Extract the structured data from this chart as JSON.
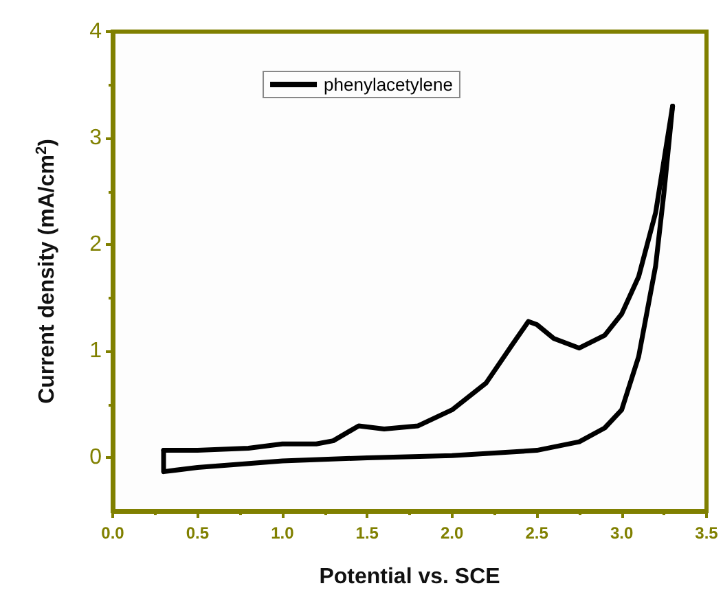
{
  "chart_data": {
    "type": "line",
    "xlabel": "Potential vs. SCE",
    "ylabel": "Current density (mA/cm$^{2}$)",
    "xlim": [
      0,
      3.5
    ],
    "xticks": [
      {
        "value": 0,
        "label": "0.0"
      },
      0.5,
      {
        "value": 1,
        "label": "1.0"
      },
      1.5,
      {
        "value": 2,
        "label": "2.0"
      },
      2.5,
      {
        "value": 3,
        "label": "3.0"
      },
      3.5
    ],
    "ylim": [
      -0.5,
      4
    ],
    "yticks": [
      0,
      1,
      2,
      3,
      4
    ],
    "legend": "top",
    "grid": false,
    "marker": "none",
    "line_style": "solid",
    "series": [
      {
        "name": "phenylacetylene",
        "color": "#000000",
        "x": [
          0.3,
          0.5,
          0.8,
          1.0,
          1.2,
          1.3,
          1.45,
          1.6,
          1.8,
          2.0,
          2.2,
          2.35,
          2.45,
          2.5,
          2.6,
          2.75,
          2.9,
          3.0,
          3.1,
          3.2,
          3.27,
          3.3
        ],
        "values": [
          0.07,
          0.07,
          0.09,
          0.13,
          0.13,
          0.16,
          0.3,
          0.27,
          0.3,
          0.45,
          0.7,
          1.05,
          1.28,
          1.25,
          1.12,
          1.03,
          1.15,
          1.35,
          1.7,
          2.3,
          3.0,
          3.3
        ]
      },
      {
        "color": "#000000",
        "x": [
          3.3,
          3.25,
          3.2,
          3.1,
          3.0,
          2.9,
          2.75,
          2.5,
          2.0,
          1.5,
          1.0,
          0.5,
          0.3,
          0.3
        ],
        "values": [
          3.3,
          2.5,
          1.8,
          0.95,
          0.45,
          0.28,
          0.15,
          0.07,
          0.02,
          0.0,
          -0.03,
          -0.09,
          -0.13,
          0.07
        ]
      }
    ]
  }
}
